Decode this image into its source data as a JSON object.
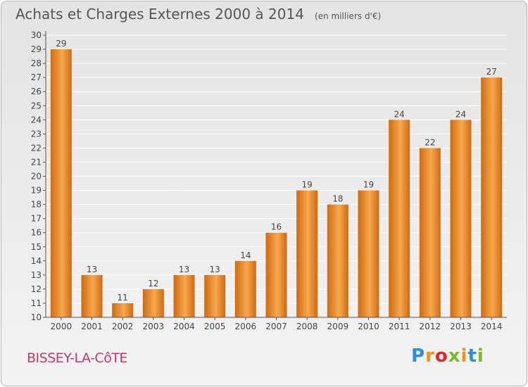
{
  "title": "Achats et Charges Externes 2000 à 2014",
  "subtitle": "(en milliers d'€)",
  "commune": "BISSEY-LA-CôTE",
  "logo": {
    "text": "Proxiti",
    "colors": [
      "#2e8fd4",
      "#f0921e",
      "#e4262b",
      "#7ab929",
      "#f0921e",
      "#2e8fd4",
      "#7ab929"
    ]
  },
  "colors": {
    "bar_light": "#f7a84e",
    "bar_dark": "#d06a10",
    "axis": "#555555",
    "grid": "#ffffff"
  },
  "chart_data": {
    "type": "bar",
    "title": "Achats et Charges Externes 2000 à 2014",
    "subtitle": "(en milliers d'€)",
    "xlabel": "",
    "ylabel": "",
    "categories": [
      "2000",
      "2001",
      "2002",
      "2003",
      "2004",
      "2005",
      "2006",
      "2007",
      "2008",
      "2009",
      "2010",
      "2011",
      "2012",
      "2013",
      "2014"
    ],
    "values": [
      29,
      13,
      11,
      12,
      13,
      13,
      14,
      16,
      19,
      18,
      19,
      24,
      22,
      24,
      27
    ],
    "ylim": [
      10,
      30
    ],
    "yticks": [
      10,
      11,
      12,
      13,
      14,
      15,
      16,
      17,
      18,
      19,
      20,
      21,
      22,
      23,
      24,
      25,
      26,
      27,
      28,
      29,
      30
    ],
    "grid": true,
    "data_labels": true
  }
}
